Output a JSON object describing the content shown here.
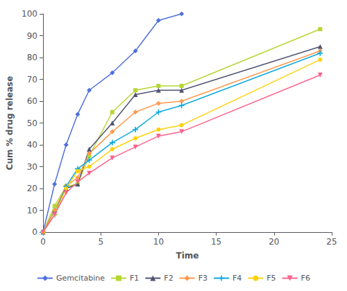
{
  "chart_data": {
    "type": "line",
    "xlabel": "Time",
    "ylabel": "Cum % drug release",
    "xlim": [
      0,
      25
    ],
    "ylim": [
      0,
      100
    ],
    "xticks": [
      0,
      5,
      10,
      15,
      20,
      25
    ],
    "yticks": [
      0,
      10,
      20,
      30,
      40,
      50,
      60,
      70,
      80,
      90,
      100
    ],
    "grid": false,
    "legend": "bottom",
    "series": [
      {
        "name": "Gemcitabine",
        "marker": "diamond",
        "x": [
          0,
          1,
          2,
          3,
          4,
          6,
          8,
          10,
          12
        ],
        "values": [
          0,
          22,
          40,
          54,
          65,
          73,
          83,
          97,
          100
        ]
      },
      {
        "name": "F1",
        "marker": "square",
        "x": [
          0,
          1,
          2,
          3,
          4,
          6,
          8,
          10,
          12,
          24
        ],
        "values": [
          0,
          12,
          21,
          22,
          35,
          55,
          65,
          67,
          67,
          93
        ]
      },
      {
        "name": "F2",
        "marker": "triangle",
        "x": [
          0,
          1,
          2,
          3,
          4,
          6,
          8,
          10,
          12,
          24
        ],
        "values": [
          0,
          10,
          20,
          22,
          38,
          50,
          63,
          65,
          65,
          85
        ]
      },
      {
        "name": "F3",
        "marker": "diamond",
        "x": [
          0,
          1,
          2,
          3,
          4,
          6,
          8,
          10,
          12,
          24
        ],
        "values": [
          0,
          10,
          21,
          25,
          36,
          46,
          55,
          59,
          60,
          83
        ]
      },
      {
        "name": "F4",
        "marker": "plus",
        "x": [
          0,
          1,
          2,
          3,
          4,
          6,
          8,
          10,
          12,
          24
        ],
        "values": [
          0,
          8,
          21,
          29,
          33,
          41,
          47,
          55,
          58,
          82
        ]
      },
      {
        "name": "F5",
        "marker": "circle",
        "x": [
          0,
          1,
          2,
          3,
          4,
          6,
          8,
          10,
          12,
          24
        ],
        "values": [
          0,
          8,
          20,
          28,
          30,
          38,
          43,
          47,
          49,
          79
        ]
      },
      {
        "name": "F6",
        "marker": "triangle-down",
        "x": [
          0,
          1,
          2,
          3,
          4,
          6,
          8,
          10,
          12,
          24
        ],
        "values": [
          0,
          8,
          18,
          23,
          27,
          34,
          39,
          44,
          46,
          72
        ]
      }
    ]
  }
}
